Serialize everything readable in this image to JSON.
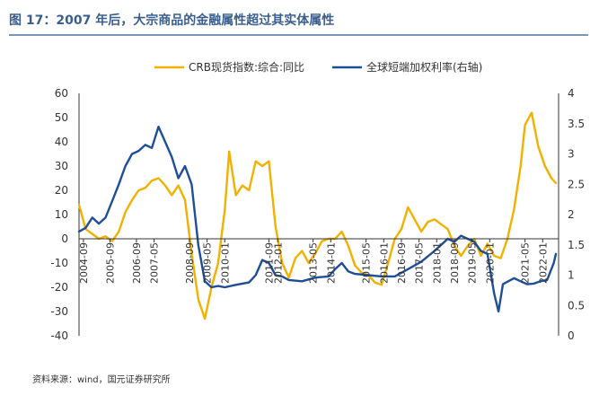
{
  "figure": {
    "title": "图 17：2007 年后，大宗商品的金融属性超过其实体属性",
    "source": "资料来源：wind，国元证券研究所"
  },
  "chart_data": {
    "type": "line",
    "title": "图 17：2007 年后，大宗商品的金融属性超过其实体属性",
    "xlabel": "",
    "ylabel": "",
    "y2label": "",
    "x_ticks": [
      "2004-09",
      "2005-09",
      "2006-09",
      "2007-05",
      "2008-09",
      "2009-05",
      "2010-01",
      "2011-09",
      "2012-01",
      "2013-05",
      "2014-01",
      "2015-05",
      "2016-01",
      "2016-09",
      "2017-05",
      "2018-01",
      "2018-09",
      "2019-05",
      "2020-01",
      "2021-05",
      "2022-01"
    ],
    "ylim": [
      -40,
      60
    ],
    "y_ticks": [
      "60",
      "50",
      "40",
      "30",
      "20",
      "10",
      "0",
      "-10",
      "-20",
      "-30",
      "-40"
    ],
    "y2lim": [
      0,
      4
    ],
    "y2_ticks": [
      "4",
      "3.5",
      "3",
      "2.5",
      "2",
      "1.5",
      "1",
      "0.5",
      "0"
    ],
    "grid": false,
    "legend_position": "top-center",
    "series": [
      {
        "name": "CRB现货指数:综合:同比",
        "axis": "left",
        "color": "#f2b000",
        "points": [
          [
            "2004-07",
            14
          ],
          [
            "2004-10",
            4
          ],
          [
            "2005-01",
            2
          ],
          [
            "2005-04",
            0
          ],
          [
            "2005-07",
            1
          ],
          [
            "2005-10",
            -1
          ],
          [
            "2006-01",
            3
          ],
          [
            "2006-04",
            11
          ],
          [
            "2006-07",
            16
          ],
          [
            "2006-10",
            20
          ],
          [
            "2007-01",
            21
          ],
          [
            "2007-04",
            24
          ],
          [
            "2007-07",
            25
          ],
          [
            "2007-10",
            22
          ],
          [
            "2008-01",
            18
          ],
          [
            "2008-04",
            22
          ],
          [
            "2008-07",
            16
          ],
          [
            "2008-10",
            -6
          ],
          [
            "2009-01",
            -25
          ],
          [
            "2009-04",
            -33
          ],
          [
            "2009-07",
            -20
          ],
          [
            "2009-10",
            -10
          ],
          [
            "2010-01",
            12
          ],
          [
            "2010-03",
            36
          ],
          [
            "2010-06",
            18
          ],
          [
            "2010-09",
            22
          ],
          [
            "2010-12",
            20
          ],
          [
            "2011-03",
            32
          ],
          [
            "2011-06",
            30
          ],
          [
            "2011-09",
            32
          ],
          [
            "2011-12",
            5
          ],
          [
            "2012-03",
            -10
          ],
          [
            "2012-06",
            -16
          ],
          [
            "2012-09",
            -8
          ],
          [
            "2012-12",
            -5
          ],
          [
            "2013-03",
            -10
          ],
          [
            "2013-06",
            -6
          ],
          [
            "2013-09",
            -1
          ],
          [
            "2013-12",
            0
          ],
          [
            "2014-03",
            0
          ],
          [
            "2014-06",
            3
          ],
          [
            "2014-09",
            -3
          ],
          [
            "2014-12",
            -11
          ],
          [
            "2015-03",
            -14
          ],
          [
            "2015-06",
            -15
          ],
          [
            "2015-09",
            -18
          ],
          [
            "2015-12",
            -19
          ],
          [
            "2016-03",
            -10
          ],
          [
            "2016-06",
            0
          ],
          [
            "2016-09",
            4
          ],
          [
            "2016-12",
            13
          ],
          [
            "2017-03",
            8
          ],
          [
            "2017-06",
            3
          ],
          [
            "2017-09",
            7
          ],
          [
            "2017-12",
            8
          ],
          [
            "2018-03",
            6
          ],
          [
            "2018-06",
            4
          ],
          [
            "2018-09",
            -3
          ],
          [
            "2018-12",
            -7
          ],
          [
            "2019-03",
            -3
          ],
          [
            "2019-06",
            0
          ],
          [
            "2019-09",
            -7
          ],
          [
            "2019-12",
            -2
          ],
          [
            "2020-03",
            -7
          ],
          [
            "2020-06",
            -8
          ],
          [
            "2020-09",
            0
          ],
          [
            "2020-12",
            12
          ],
          [
            "2021-03",
            30
          ],
          [
            "2021-05",
            47
          ],
          [
            "2021-08",
            52
          ],
          [
            "2021-11",
            38
          ],
          [
            "2022-02",
            30
          ],
          [
            "2022-05",
            25
          ],
          [
            "2022-07",
            23
          ]
        ]
      },
      {
        "name": "全球短端加权利率(右轴)",
        "axis": "right",
        "color": "#1f4e99",
        "points": [
          [
            "2004-07",
            1.72
          ],
          [
            "2004-10",
            1.78
          ],
          [
            "2005-01",
            1.95
          ],
          [
            "2005-04",
            1.85
          ],
          [
            "2005-07",
            1.95
          ],
          [
            "2005-10",
            2.22
          ],
          [
            "2006-01",
            2.5
          ],
          [
            "2006-04",
            2.8
          ],
          [
            "2006-07",
            3.0
          ],
          [
            "2006-10",
            3.05
          ],
          [
            "2007-01",
            3.15
          ],
          [
            "2007-04",
            3.1
          ],
          [
            "2007-07",
            3.45
          ],
          [
            "2007-10",
            3.2
          ],
          [
            "2008-01",
            2.95
          ],
          [
            "2008-04",
            2.6
          ],
          [
            "2008-07",
            2.8
          ],
          [
            "2008-10",
            2.5
          ],
          [
            "2009-01",
            1.5
          ],
          [
            "2009-04",
            0.9
          ],
          [
            "2009-07",
            0.8
          ],
          [
            "2009-10",
            0.82
          ],
          [
            "2010-01",
            0.8
          ],
          [
            "2010-06",
            0.84
          ],
          [
            "2010-12",
            0.88
          ],
          [
            "2011-03",
            1.0
          ],
          [
            "2011-06",
            1.25
          ],
          [
            "2011-09",
            1.2
          ],
          [
            "2011-12",
            1.0
          ],
          [
            "2012-03",
            0.98
          ],
          [
            "2012-06",
            0.92
          ],
          [
            "2012-12",
            0.9
          ],
          [
            "2013-06",
            0.96
          ],
          [
            "2013-12",
            0.98
          ],
          [
            "2014-03",
            1.1
          ],
          [
            "2014-06",
            1.2
          ],
          [
            "2014-09",
            1.06
          ],
          [
            "2014-12",
            1.02
          ],
          [
            "2015-06",
            1.0
          ],
          [
            "2015-12",
            0.98
          ],
          [
            "2016-06",
            0.98
          ],
          [
            "2016-12",
            1.1
          ],
          [
            "2017-06",
            1.22
          ],
          [
            "2017-12",
            1.4
          ],
          [
            "2018-03",
            1.5
          ],
          [
            "2018-06",
            1.6
          ],
          [
            "2018-09",
            1.55
          ],
          [
            "2018-12",
            1.65
          ],
          [
            "2019-03",
            1.6
          ],
          [
            "2019-06",
            1.55
          ],
          [
            "2019-09",
            1.4
          ],
          [
            "2019-12",
            1.35
          ],
          [
            "2020-03",
            0.7
          ],
          [
            "2020-05",
            0.4
          ],
          [
            "2020-07",
            0.85
          ],
          [
            "2020-12",
            0.95
          ],
          [
            "2021-03",
            0.9
          ],
          [
            "2021-06",
            0.85
          ],
          [
            "2021-09",
            0.86
          ],
          [
            "2021-12",
            0.9
          ],
          [
            "2022-03",
            0.92
          ],
          [
            "2022-06",
            1.2
          ],
          [
            "2022-07",
            1.35
          ]
        ]
      }
    ]
  }
}
